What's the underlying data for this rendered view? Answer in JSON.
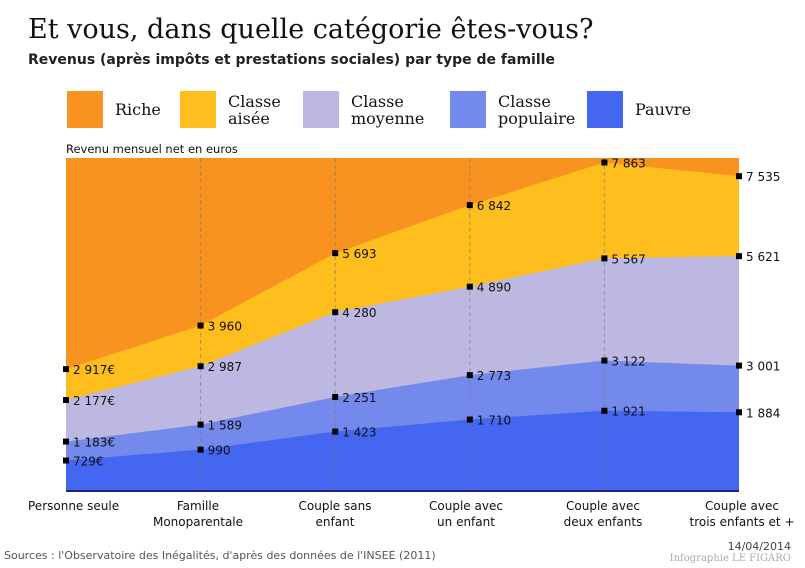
{
  "title": "Et vous, dans quelle catégorie êtes-vous?",
  "subtitle": "Revenus (après impôts et prestations sociales) par type de famille",
  "legend": [
    {
      "label": "Riche",
      "color": "#F7931E"
    },
    {
      "label": "Classe\naisée",
      "color": "#FDBE1E"
    },
    {
      "label": "Classe\nmoyenne",
      "color": "#BDB8E2"
    },
    {
      "label": "Classe\npopulaire",
      "color": "#7389EC"
    },
    {
      "label": "Pauvre",
      "color": "#4466F0"
    }
  ],
  "unit_label": "Revenu mensuel net en euros",
  "chart_data": {
    "type": "area",
    "stacked": false,
    "ylabel": "Revenu mensuel net en euros",
    "ylim": [
      0,
      7970
    ],
    "categories": [
      "Personne seule",
      "Famille\nMonoparentale",
      "Couple sans\nenfant",
      "Couple avec\nun enfant",
      "Couple avec\ndeux enfants",
      "Couple avec\ntrois enfants et +"
    ],
    "thresholds": [
      {
        "name": "Classe aisée",
        "values": [
          2917,
          3960,
          5693,
          6842,
          7863,
          7535
        ],
        "labels": [
          "2 917€",
          "3 960",
          "5 693",
          "6 842",
          "7 863",
          "7 535"
        ]
      },
      {
        "name": "Classe moyenne",
        "values": [
          2177,
          2987,
          4280,
          4890,
          5567,
          5621
        ],
        "labels": [
          "2 177€",
          "2 987",
          "4 280",
          "4 890",
          "5 567",
          "5 621"
        ]
      },
      {
        "name": "Classe populaire",
        "values": [
          1183,
          1589,
          2251,
          2773,
          3122,
          3001
        ],
        "labels": [
          "1 183€",
          "1 589",
          "2 251",
          "2 773",
          "3 122",
          "3 001"
        ]
      },
      {
        "name": "Pauvre",
        "values": [
          729,
          990,
          1423,
          1710,
          1921,
          1884
        ],
        "labels": [
          "729€",
          "990",
          "1 423",
          "1 710",
          "1 921",
          "1 884"
        ]
      }
    ],
    "grid": false
  },
  "footer": {
    "source": "Sources : l'Observatoire des Inégalités, d'après des données de l'INSEE (2011)",
    "date": "14/04/2014",
    "credit": "Infographie LE FIGARO"
  }
}
